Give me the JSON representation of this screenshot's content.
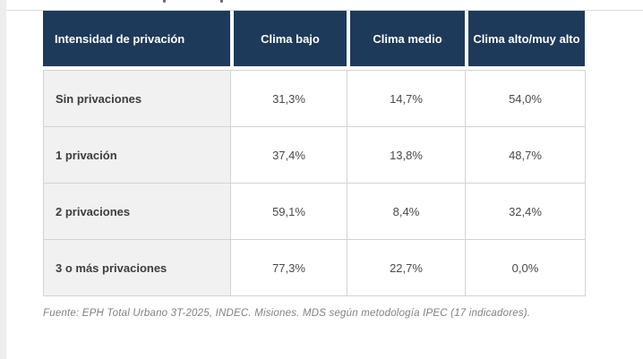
{
  "chart_data": {
    "type": "table",
    "columns": [
      "Intensidad de privación",
      "Clima bajo",
      "Clima medio",
      "Clima alto/muy alto"
    ],
    "rows": [
      {
        "label": "Sin privaciones",
        "values": [
          "31,3%",
          "14,7%",
          "54,0%"
        ]
      },
      {
        "label": "1 privación",
        "values": [
          "37,4%",
          "13,8%",
          "48,7%"
        ]
      },
      {
        "label": "2 privaciones",
        "values": [
          "59,1%",
          "8,4%",
          "32,4%"
        ]
      },
      {
        "label": "3 o más privaciones",
        "values": [
          "77,3%",
          "22,7%",
          "0,0%"
        ]
      }
    ],
    "note": "Fuente: EPH Total Urbano 3T-2025, INDEC. Misiones. MDS según metodología IPEC (17 indicadores).",
    "layout": "header row dark navy, label column light gray, values centered, grid lines on"
  },
  "colors": {
    "header_bg": "#1e3a5a",
    "header_text": "#ffffff",
    "label_column_bg": "#f1f1f1",
    "body_border": "#d3d3d3",
    "note_text": "#828282",
    "side_strip": "#ededed"
  }
}
